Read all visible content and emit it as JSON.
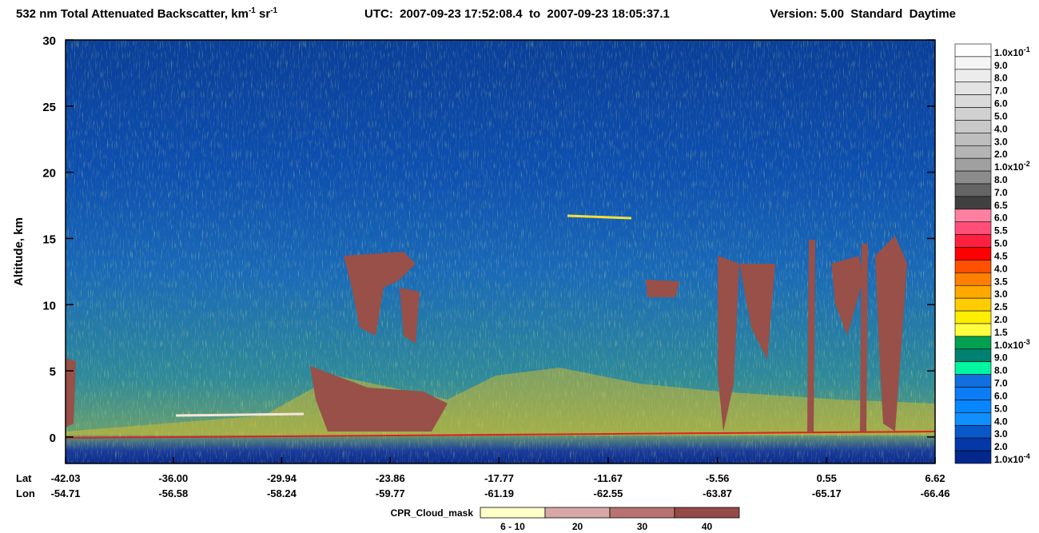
{
  "chart_data": {
    "type": "heatmap",
    "title": {
      "text": "532 nm Total Attenuated Backscatter, km",
      "sup1": "-1",
      "mid": " sr",
      "sup2": "-1"
    },
    "utc": "UTC:  2007-09-23 17:52:08.4  to  2007-09-23 18:05:37.1",
    "version": "Version: 5.00  Standard  Daytime",
    "ylabel": "Altitude, km",
    "ylim": [
      -2,
      30
    ],
    "yticks": [
      0,
      5,
      10,
      15,
      20,
      25,
      30
    ],
    "xlim": [
      -42.03,
      6.62
    ],
    "lat_label": "Lat",
    "lon_label": "Lon",
    "xticks": [
      -42.03,
      {
        "value": -36,
        "label": "-36.00"
      },
      -29.94,
      -23.86,
      -17.77,
      -11.67,
      -5.56,
      0.55,
      6.62
    ],
    "lon_ticks": [
      -54.71,
      -56.58,
      -58.24,
      -59.77,
      -61.19,
      -62.55,
      -63.87,
      -65.17,
      -66.46
    ],
    "colorscale": [
      {
        "value": 0.1,
        "label": "1.0x10",
        "exp": "-1",
        "color": "#ffffff"
      },
      {
        "value": 0.09,
        "label": "9.0",
        "color": "#f5f5f5"
      },
      {
        "value": 0.08,
        "label": "8.0",
        "color": "#ececec"
      },
      {
        "value": 0.07,
        "label": "7.0",
        "color": "#e3e3e3"
      },
      {
        "value": 0.06,
        "label": "6.0",
        "color": "#dadada"
      },
      {
        "value": 0.05,
        "label": "5.0",
        "color": "#d1d1d1"
      },
      {
        "value": 0.04,
        "label": "4.0",
        "color": "#c8c8c8"
      },
      {
        "value": 0.03,
        "label": "3.0",
        "color": "#bebebe"
      },
      {
        "value": 0.02,
        "label": "2.0",
        "color": "#b4b4b4"
      },
      {
        "value": 0.01,
        "label": "1.0x10",
        "exp": "-2",
        "color": "#a0a0a0"
      },
      {
        "value": 0.008,
        "label": "8.0",
        "color": "#8c8c8c"
      },
      {
        "value": 0.007,
        "label": "7.0",
        "color": "#646464"
      },
      {
        "value": 0.0065,
        "label": "6.5",
        "color": "#404040"
      },
      {
        "value": 0.006,
        "label": "6.0",
        "color": "#ff7fa0"
      },
      {
        "value": 0.0055,
        "label": "5.5",
        "color": "#ff4f78"
      },
      {
        "value": 0.005,
        "label": "5.0",
        "color": "#ff2040"
      },
      {
        "value": 0.0045,
        "label": "4.5",
        "color": "#ff0000"
      },
      {
        "value": 0.004,
        "label": "4.0",
        "color": "#ff5000"
      },
      {
        "value": 0.0035,
        "label": "3.5",
        "color": "#ff8000"
      },
      {
        "value": 0.003,
        "label": "3.0",
        "color": "#ffa800"
      },
      {
        "value": 0.0025,
        "label": "2.5",
        "color": "#ffcc00"
      },
      {
        "value": 0.002,
        "label": "2.0",
        "color": "#ffee00"
      },
      {
        "value": 0.0015,
        "label": "1.5",
        "color": "#ffff40"
      },
      {
        "value": 0.001,
        "label": "1.0x10",
        "exp": "-3",
        "color": "#00a050"
      },
      {
        "value": 0.0009,
        "label": "9.0",
        "color": "#008070"
      },
      {
        "value": 0.0008,
        "label": "8.0",
        "color": "#00f5a0"
      },
      {
        "value": 0.0007,
        "label": "7.0",
        "color": "#1070e0"
      },
      {
        "value": 0.0006,
        "label": "6.0",
        "color": "#0a7cf5"
      },
      {
        "value": 0.0005,
        "label": "5.0",
        "color": "#0886ff"
      },
      {
        "value": 0.0004,
        "label": "4.0",
        "color": "#1090ff"
      },
      {
        "value": 0.0003,
        "label": "3.0",
        "color": "#0858c8"
      },
      {
        "value": 0.0002,
        "label": "2.0",
        "color": "#0438a8"
      },
      {
        "value": 0.0001,
        "label": "1.0x10",
        "exp": "-4",
        "color": "#03288c"
      }
    ],
    "cloud_mask": {
      "title": "CPR_Cloud_mask",
      "items": [
        {
          "label": "6 - 10",
          "color": "#ffffc8"
        },
        {
          "label": "20",
          "color": "#d8a8a8"
        },
        {
          "label": "30",
          "color": "#b87272"
        },
        {
          "label": "40",
          "color": "#964a48"
        }
      ]
    }
  }
}
